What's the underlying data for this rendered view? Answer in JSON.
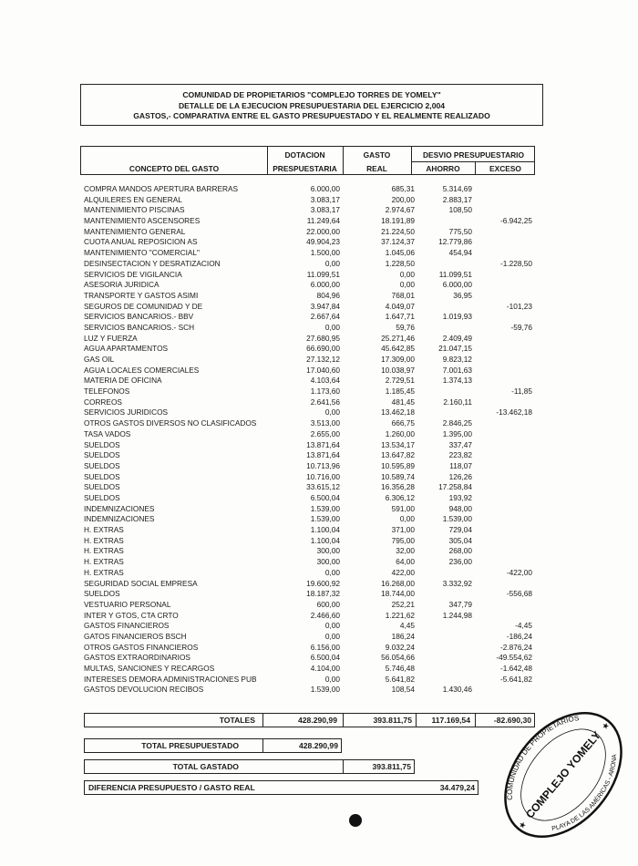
{
  "header": {
    "line1": "COMUNIDAD DE PROPIETARIOS \"COMPLEJO TORRES DE YOMELY\"",
    "line2": "DETALLE DE LA EJECUCION PRESUPUESTARIA DEL EJERCICIO 2,004",
    "line3": "GASTOS,- COMPARATIVA ENTRE EL GASTO PRESUPUESTADO Y EL REALMENTE REALIZADO"
  },
  "columns": {
    "concepto": "CONCEPTO DEL GASTO",
    "dotacion_1": "DOTACION",
    "dotacion_2": "PRESPUESTARIA",
    "gasto_1": "GASTO",
    "gasto_2": "REAL",
    "desvio": "DESVIO PRESUPUESTARIO",
    "ahorro": "AHORRO",
    "exceso": "EXCESO"
  },
  "rows": [
    [
      "COMPRA MANDOS APERTURA BARRERAS",
      "6.000,00",
      "685,31",
      "5.314,69",
      ""
    ],
    [
      "ALQUILERES EN GENERAL",
      "3.083,17",
      "200,00",
      "2.883,17",
      ""
    ],
    [
      "MANTENIMIENTO PISCINAS",
      "3.083,17",
      "2.974,67",
      "108,50",
      ""
    ],
    [
      "MANTENIMIENT0 ASCENSORES",
      "11.249,64",
      "18.191,89",
      "",
      "-6.942,25"
    ],
    [
      "MANTENIMIENTO GENERAL",
      "22.000,00",
      "21.224,50",
      "775,50",
      ""
    ],
    [
      "CUOTA ANUAL REPOSICION AS",
      "49.904,23",
      "37.124,37",
      "12.779,86",
      ""
    ],
    [
      "MANTENIMIENTO \"COMERCIAL\"",
      "1.500,00",
      "1.045,06",
      "454,94",
      ""
    ],
    [
      "DESINSECTACION Y DESRATIZACION",
      "0,00",
      "1.228,50",
      "",
      "-1.228,50"
    ],
    [
      "SERVICIOS DE VIGILANCIA",
      "11.099,51",
      "0,00",
      "11.099,51",
      ""
    ],
    [
      "ASESORIA JURIDICA",
      "6.000,00",
      "0,00",
      "6.000,00",
      ""
    ],
    [
      "TRANSPORTE Y GASTOS ASIMI",
      "804,96",
      "768,01",
      "36,95",
      ""
    ],
    [
      "SEGUROS DE COMUNIDAD Y DE",
      "3.947,84",
      "4.049,07",
      "",
      "-101,23"
    ],
    [
      "SERVICIOS BANCARIOS.- BBV",
      "2.667,64",
      "1.647,71",
      "1.019,93",
      ""
    ],
    [
      "SERVICIOS BANCARIOS.- SCH",
      "0,00",
      "59,76",
      "",
      "-59,76"
    ],
    [
      "LUZ Y FUERZA",
      "27.680,95",
      "25.271,46",
      "2.409,49",
      ""
    ],
    [
      "AGUA APARTAMENTOS",
      "66.690,00",
      "45.642,85",
      "21.047,15",
      ""
    ],
    [
      "GAS OIL",
      "27.132,12",
      "17.309,00",
      "9.823,12",
      ""
    ],
    [
      "AGUA LOCALES COMERCIALES",
      "17.040,60",
      "10.038,97",
      "7.001,63",
      ""
    ],
    [
      "MATERIA DE OFICINA",
      "4.103,64",
      "2.729,51",
      "1.374,13",
      ""
    ],
    [
      "TELEFONOS",
      "1.173,60",
      "1.185,45",
      "",
      "-11,85"
    ],
    [
      "CORREOS",
      "2.641,56",
      "481,45",
      "2.160,11",
      ""
    ],
    [
      "SERVICIOS JURIDICOS",
      "0,00",
      "13.462,18",
      "",
      "-13.462,18"
    ],
    [
      "OTROS GASTOS DIVERSOS NO CLASIFICADOS",
      "3.513,00",
      "666,75",
      "2.846,25",
      ""
    ],
    [
      "TASA VADOS",
      "2.655,00",
      "1.260,00",
      "1.395,00",
      ""
    ],
    [
      "SUELDOS",
      "13.871,64",
      "13.534,17",
      "337,47",
      ""
    ],
    [
      "SUELDOS",
      "13.871,64",
      "13.647,82",
      "223,82",
      ""
    ],
    [
      "SUELDOS",
      "10.713,96",
      "10.595,89",
      "118,07",
      ""
    ],
    [
      "SUELDOS",
      "10.716,00",
      "10.589,74",
      "126,26",
      ""
    ],
    [
      "SUELDOS",
      "33.615,12",
      "16.356,28",
      "17.258,84",
      ""
    ],
    [
      "SUELDOS",
      "6.500,04",
      "6.306,12",
      "193,92",
      ""
    ],
    [
      "INDEMNIZACIONES",
      "1.539,00",
      "591,00",
      "948,00",
      ""
    ],
    [
      "INDEMNIZACIONES",
      "1.539,00",
      "0,00",
      "1.539,00",
      ""
    ],
    [
      "H. EXTRAS",
      "1.100,04",
      "371,00",
      "729,04",
      ""
    ],
    [
      "H. EXTRAS",
      "1.100,04",
      "795,00",
      "305,04",
      ""
    ],
    [
      "H. EXTRAS",
      "300,00",
      "32,00",
      "268,00",
      ""
    ],
    [
      "H. EXTRAS",
      "300,00",
      "64,00",
      "236,00",
      ""
    ],
    [
      "H. EXTRAS",
      "0,00",
      "422,00",
      "",
      "-422,00"
    ],
    [
      "SEGURIDAD SOCIAL EMPRESA",
      "19.600,92",
      "16.268,00",
      "3.332,92",
      ""
    ],
    [
      "SUELDOS",
      "18.187,32",
      "18.744,00",
      "",
      "-556,68"
    ],
    [
      "VESTUARIO PERSONAL",
      "600,00",
      "252,21",
      "347,79",
      ""
    ],
    [
      "INTER Y GTOS, CTA CRTO",
      "2.466,60",
      "1.221,62",
      "1.244,98",
      ""
    ],
    [
      "GASTOS FINANCIEROS",
      "0,00",
      "4,45",
      "",
      "-4,45"
    ],
    [
      "GATOS FINANCIEROS BSCH",
      "0,00",
      "186,24",
      "",
      "-186,24"
    ],
    [
      "OTROS GASTOS FINANCIEROS",
      "6.156,00",
      "9.032,24",
      "",
      "-2.876,24"
    ],
    [
      "GASTOS EXTRAORDINARIOS",
      "6.500,04",
      "56.054,66",
      "",
      "-49.554,62"
    ],
    [
      "MULTAS, SANCIONES Y RECARGOS",
      "4.104,00",
      "5.746,48",
      "",
      "-1.642,48"
    ],
    [
      "INTERESES DEMORA ADMINISTRACIONES PUB",
      "0,00",
      "5.641,82",
      "",
      "-5.641,82"
    ],
    [
      "GASTOS DEVOLUCION RECIBOS",
      "1.539,00",
      "108,54",
      "1.430,46",
      ""
    ]
  ],
  "totals": {
    "label": "TOTALES",
    "dotacion": "428.290,99",
    "gasto": "393.811,75",
    "ahorro": "117.169,54",
    "exceso": "-82.690,30"
  },
  "summary": {
    "presupuestado_label": "TOTAL PRESUPUESTADO",
    "presupuestado_value": "428.290,99",
    "gastado_label": "TOTAL GASTADO",
    "gastado_value": "393.811,75",
    "diferencia_label": "DIFERENCIA PRESUPUESTO / GASTO REAL",
    "diferencia_value": "34.479,24"
  },
  "stamp": {
    "top_text": "COMUNIDAD DE PROPIETARIOS",
    "center_text": "COMPLEJO YOMELY",
    "bottom_text": "PLAYA DE LAS AMÉRICAS - ARONA"
  }
}
